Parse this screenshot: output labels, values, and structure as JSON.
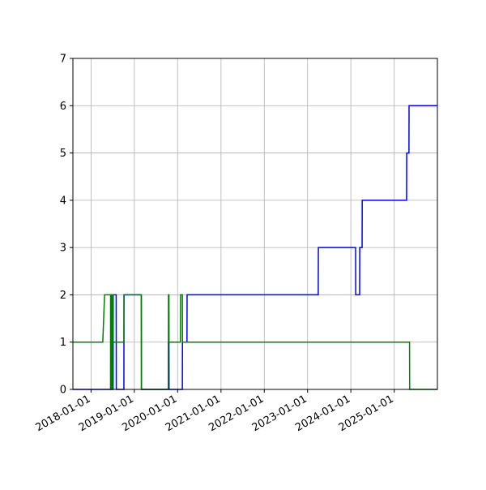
{
  "chart_data": {
    "type": "line",
    "title": "",
    "xlabel": "",
    "ylabel": "",
    "x_axis_type": "date",
    "xlim": [
      "2017-08-01",
      "2025-12-31"
    ],
    "ylim": [
      0,
      7
    ],
    "grid": true,
    "x_ticks": [
      "2018-01-01",
      "2019-01-01",
      "2020-01-01",
      "2021-01-01",
      "2022-01-01",
      "2023-01-01",
      "2024-01-01",
      "2025-01-01"
    ],
    "y_ticks": [
      0,
      1,
      2,
      3,
      4,
      5,
      6,
      7
    ],
    "series": [
      {
        "color": "#0000ff",
        "x": [
          "2017-08-01",
          "2018-06-15",
          "2018-06-16",
          "2018-06-20",
          "2018-06-21",
          "2018-06-24",
          "2018-06-25",
          "2018-07-01",
          "2018-07-02",
          "2018-07-06",
          "2018-07-07",
          "2018-08-01",
          "2018-08-02",
          "2018-10-05",
          "2018-10-06",
          "2019-03-01",
          "2019-03-02",
          "2019-10-15",
          "2019-10-16",
          "2019-10-20",
          "2019-10-21",
          "2020-02-10",
          "2020-02-11",
          "2020-03-20",
          "2020-03-21",
          "2023-04-01",
          "2023-04-02",
          "2024-02-10",
          "2024-02-11",
          "2024-03-15",
          "2024-03-16",
          "2024-04-05",
          "2024-04-06",
          "2025-04-15",
          "2025-04-16",
          "2025-05-05",
          "2025-05-06",
          "2025-12-31"
        ],
        "y": [
          0,
          0,
          2,
          2,
          0,
          0,
          1,
          1,
          0,
          0,
          2,
          2,
          0,
          0,
          2,
          2,
          0,
          0,
          1,
          1,
          0,
          0,
          1,
          1,
          2,
          2,
          3,
          3,
          2,
          2,
          3,
          3,
          4,
          4,
          5,
          5,
          6,
          6
        ]
      },
      {
        "color": "#008000",
        "x": [
          "2017-08-01",
          "2018-04-10",
          "2018-04-25",
          "2018-06-15",
          "2018-06-16",
          "2018-06-20",
          "2018-06-21",
          "2018-06-25",
          "2018-06-26",
          "2018-07-01",
          "2018-07-02",
          "2018-07-05",
          "2018-07-06",
          "2018-10-05",
          "2018-10-06",
          "2019-03-01",
          "2019-03-02",
          "2019-10-15",
          "2019-10-16",
          "2019-10-20",
          "2019-10-21",
          "2020-01-25",
          "2020-01-26",
          "2020-02-10",
          "2020-02-11",
          "2025-05-10",
          "2025-05-11",
          "2025-12-31"
        ],
        "y": [
          1,
          1,
          2,
          2,
          0,
          0,
          2,
          2,
          0,
          0,
          2,
          2,
          1,
          1,
          2,
          2,
          0,
          0,
          2,
          2,
          1,
          1,
          2,
          2,
          1,
          1,
          0,
          0
        ]
      }
    ]
  }
}
